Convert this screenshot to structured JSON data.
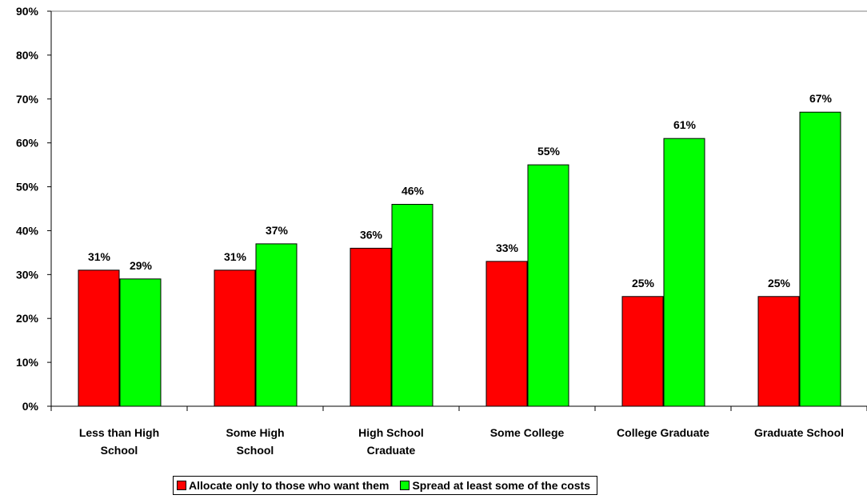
{
  "chart_data": {
    "type": "bar",
    "title": "",
    "xlabel": "",
    "ylabel": "",
    "ylim": [
      0,
      90
    ],
    "yticks": [
      "0%",
      "10%",
      "20%",
      "30%",
      "40%",
      "50%",
      "60%",
      "70%",
      "80%",
      "90%"
    ],
    "categories": [
      [
        "Less than High",
        "School"
      ],
      [
        "Some High",
        "School"
      ],
      [
        "High School",
        "Craduate"
      ],
      [
        "Some College"
      ],
      [
        "College Graduate"
      ],
      [
        "Graduate School"
      ]
    ],
    "series": [
      {
        "name": "Allocate only to those who want them",
        "color": "#ff0000",
        "values": [
          31,
          31,
          36,
          33,
          25,
          25
        ],
        "labels": [
          "31%",
          "31%",
          "36%",
          "33%",
          "25%",
          "25%"
        ]
      },
      {
        "name": "Spread at least some of the costs",
        "color": "#00ff00",
        "values": [
          29,
          37,
          46,
          55,
          61,
          67
        ],
        "labels": [
          "29%",
          "37%",
          "46%",
          "55%",
          "61%",
          "67%"
        ]
      }
    ],
    "grid": false,
    "legend_position": "bottom"
  }
}
